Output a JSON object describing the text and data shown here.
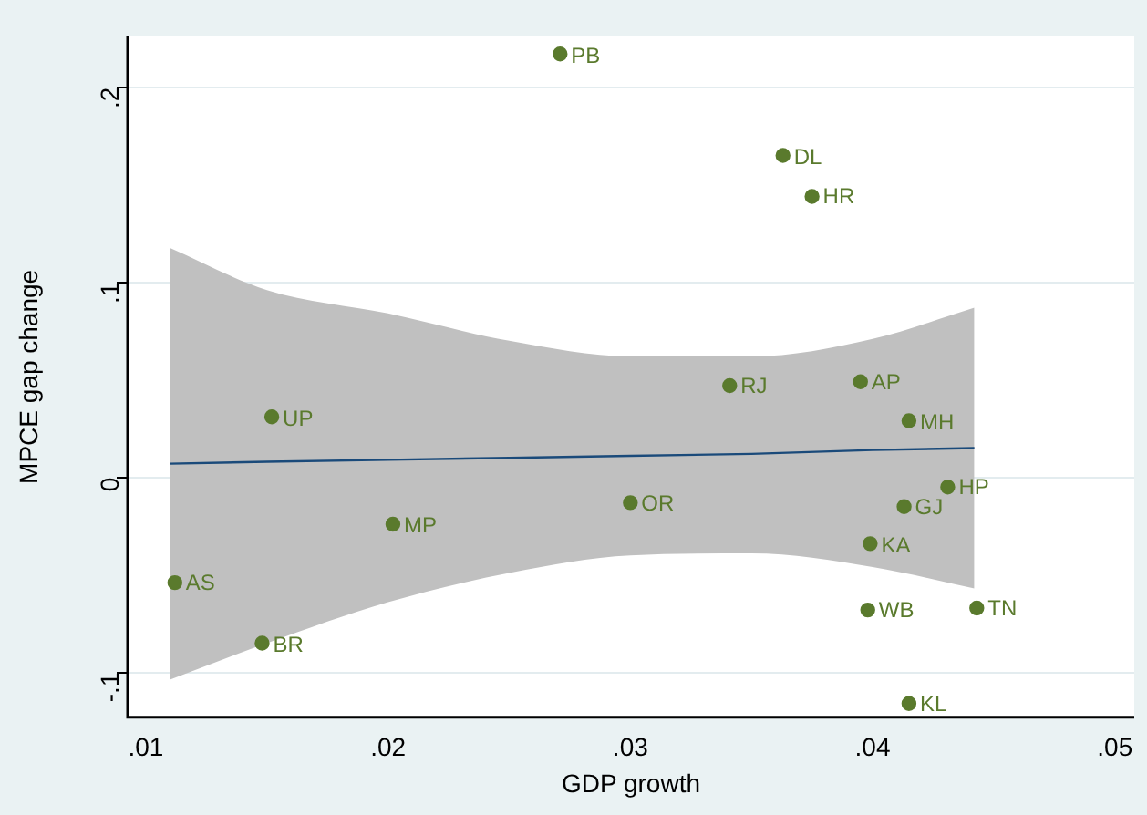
{
  "chart_data": {
    "type": "scatter",
    "xlabel": "GDP growth",
    "ylabel": "MPCE gap change",
    "xlim": [
      0.00925,
      0.0508
    ],
    "xticks": [
      {
        "value": 0.01,
        "label": ".01"
      },
      {
        "value": 0.02,
        "label": ".02"
      },
      {
        "value": 0.03,
        "label": ".03"
      },
      {
        "value": 0.04,
        "label": ".04"
      },
      {
        "value": 0.05,
        "label": ".05"
      }
    ],
    "ylim": [
      -0.123,
      0.226
    ],
    "yticks": [
      {
        "value": -0.1,
        "label": "-.1"
      },
      {
        "value": 0,
        "label": "0"
      },
      {
        "value": 0.1,
        "label": ".1"
      },
      {
        "value": 0.2,
        "label": ".2"
      }
    ],
    "grid": "y",
    "legend": false,
    "marker": "circle",
    "series": [
      {
        "type": "line",
        "color": "#1a4a7a",
        "marker": "none",
        "x": [
          0.011,
          0.015,
          0.02,
          0.025,
          0.03,
          0.035,
          0.04,
          0.0442
        ],
        "values": [
          0.007,
          0.008,
          0.009,
          0.01,
          0.011,
          0.012,
          0.014,
          0.015
        ],
        "lower": [
          -0.1037,
          -0.085,
          -0.064,
          -0.049,
          -0.04,
          -0.039,
          -0.046,
          -0.057
        ],
        "upper": [
          0.1176,
          0.096,
          0.084,
          0.07,
          0.062,
          0.062,
          0.071,
          0.087
        ]
      },
      {
        "color": "#5a7a2d",
        "x": [
          0.0271,
          0.0363,
          0.0375,
          0.0341,
          0.0395,
          0.0415,
          0.0431,
          0.0413,
          0.0399,
          0.0398,
          0.0443,
          0.0415,
          0.03,
          0.0202,
          0.0112,
          0.0148,
          0.0152
        ],
        "values": [
          0.217,
          0.165,
          0.144,
          0.047,
          0.049,
          0.029,
          -0.005,
          -0.015,
          -0.034,
          -0.068,
          -0.067,
          -0.116,
          -0.013,
          -0.024,
          -0.054,
          -0.085,
          0.031
        ]
      }
    ],
    "annotations": [
      {
        "text": "PB",
        "x": 0.0271,
        "y": 0.2167
      },
      {
        "text": "DL",
        "x": 0.0363,
        "y": 0.1648
      },
      {
        "text": "HR",
        "x": 0.0375,
        "y": 0.1444
      },
      {
        "text": "RJ",
        "x": 0.0341,
        "y": 0.0472
      },
      {
        "text": "AP",
        "x": 0.0395,
        "y": 0.0491
      },
      {
        "text": "MH",
        "x": 0.0415,
        "y": 0.0287
      },
      {
        "text": "HP",
        "x": 0.0431,
        "y": -0.0046
      },
      {
        "text": "GJ",
        "x": 0.0413,
        "y": -0.0148
      },
      {
        "text": "KA",
        "x": 0.0399,
        "y": -0.0343
      },
      {
        "text": "WB",
        "x": 0.0398,
        "y": -0.0676
      },
      {
        "text": "TN",
        "x": 0.0443,
        "y": -0.0667
      },
      {
        "text": "KL",
        "x": 0.0415,
        "y": -0.1157
      },
      {
        "text": "OR",
        "x": 0.03,
        "y": -0.013
      },
      {
        "text": "MP",
        "x": 0.0202,
        "y": -0.0241
      },
      {
        "text": "AS",
        "x": 0.0112,
        "y": -0.0537
      },
      {
        "text": "BR",
        "x": 0.0148,
        "y": -0.0852
      },
      {
        "text": "UP",
        "x": 0.0152,
        "y": 0.0306
      }
    ]
  }
}
